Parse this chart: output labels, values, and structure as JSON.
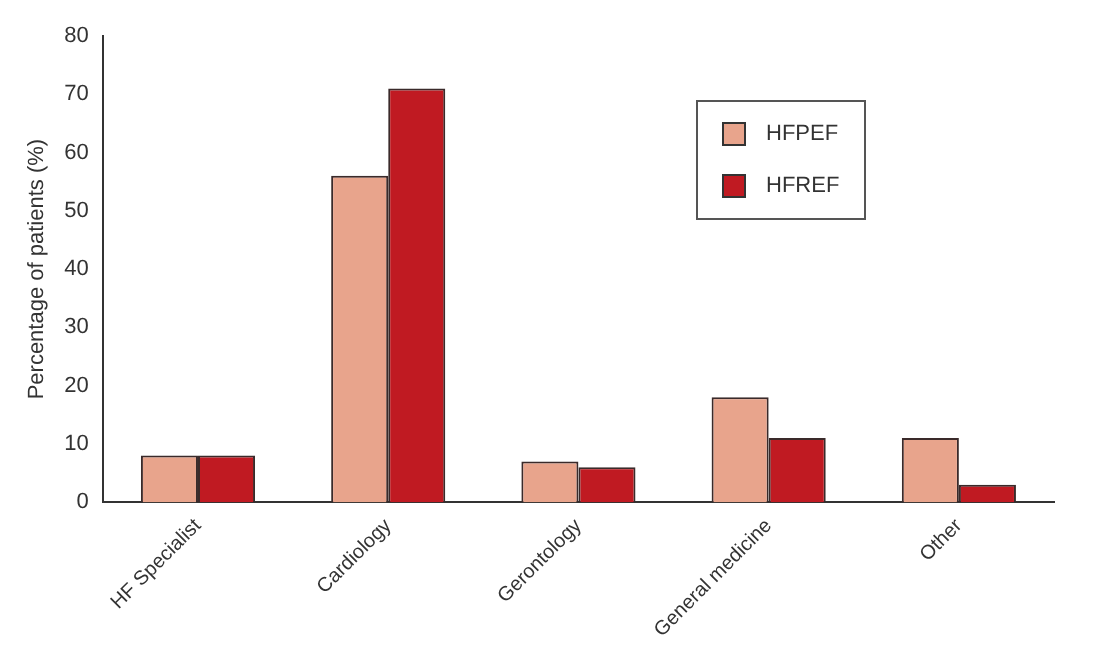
{
  "chart_data": {
    "type": "bar",
    "ylabel": "Percentage of patients (%)",
    "categories": [
      "HF Specialist",
      "Cardiology",
      "Gerontology",
      "General medicine",
      "Other"
    ],
    "series": [
      {
        "name": "HFPEF",
        "color": "#e8a48c",
        "values": [
          8,
          56,
          7,
          18,
          11
        ]
      },
      {
        "name": "HFREF",
        "color": "#c01a22",
        "values": [
          8,
          71,
          6,
          11,
          3
        ]
      }
    ],
    "ylim": [
      0,
      80
    ],
    "yticks": [
      0,
      10,
      20,
      30,
      40,
      50,
      60,
      70,
      80
    ],
    "grid": false,
    "legend": "top right"
  }
}
